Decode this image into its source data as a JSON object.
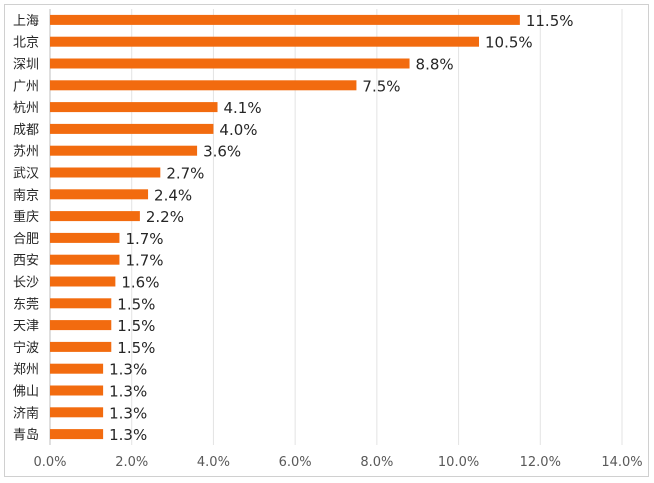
{
  "chart_data": {
    "type": "bar",
    "orientation": "horizontal",
    "categories": [
      "上海",
      "北京",
      "深圳",
      "广州",
      "杭州",
      "成都",
      "苏州",
      "武汉",
      "南京",
      "重庆",
      "合肥",
      "西安",
      "长沙",
      "东莞",
      "天津",
      "宁波",
      "郑州",
      "佛山",
      "济南",
      "青岛"
    ],
    "values": [
      11.5,
      10.5,
      8.8,
      7.5,
      4.1,
      4.0,
      3.6,
      2.7,
      2.4,
      2.2,
      1.7,
      1.7,
      1.6,
      1.5,
      1.5,
      1.5,
      1.3,
      1.3,
      1.3,
      1.3
    ],
    "value_labels": [
      "11.5%",
      "10.5%",
      "8.8%",
      "7.5%",
      "4.1%",
      "4.0%",
      "3.6%",
      "2.7%",
      "2.4%",
      "2.2%",
      "1.7%",
      "1.7%",
      "1.6%",
      "1.5%",
      "1.5%",
      "1.5%",
      "1.3%",
      "1.3%",
      "1.3%",
      "1.3%"
    ],
    "x_ticks": [
      "0.0%",
      "2.0%",
      "4.0%",
      "6.0%",
      "8.0%",
      "10.0%",
      "12.0%",
      "14.0%"
    ],
    "xlim": [
      0,
      14
    ],
    "title": "",
    "xlabel": "",
    "ylabel": "",
    "grid": "vertical",
    "legend": "none",
    "colors": {
      "bar": "#f26b0f",
      "grid": "#e3e3e3",
      "axis": "#bfbfbf"
    }
  }
}
